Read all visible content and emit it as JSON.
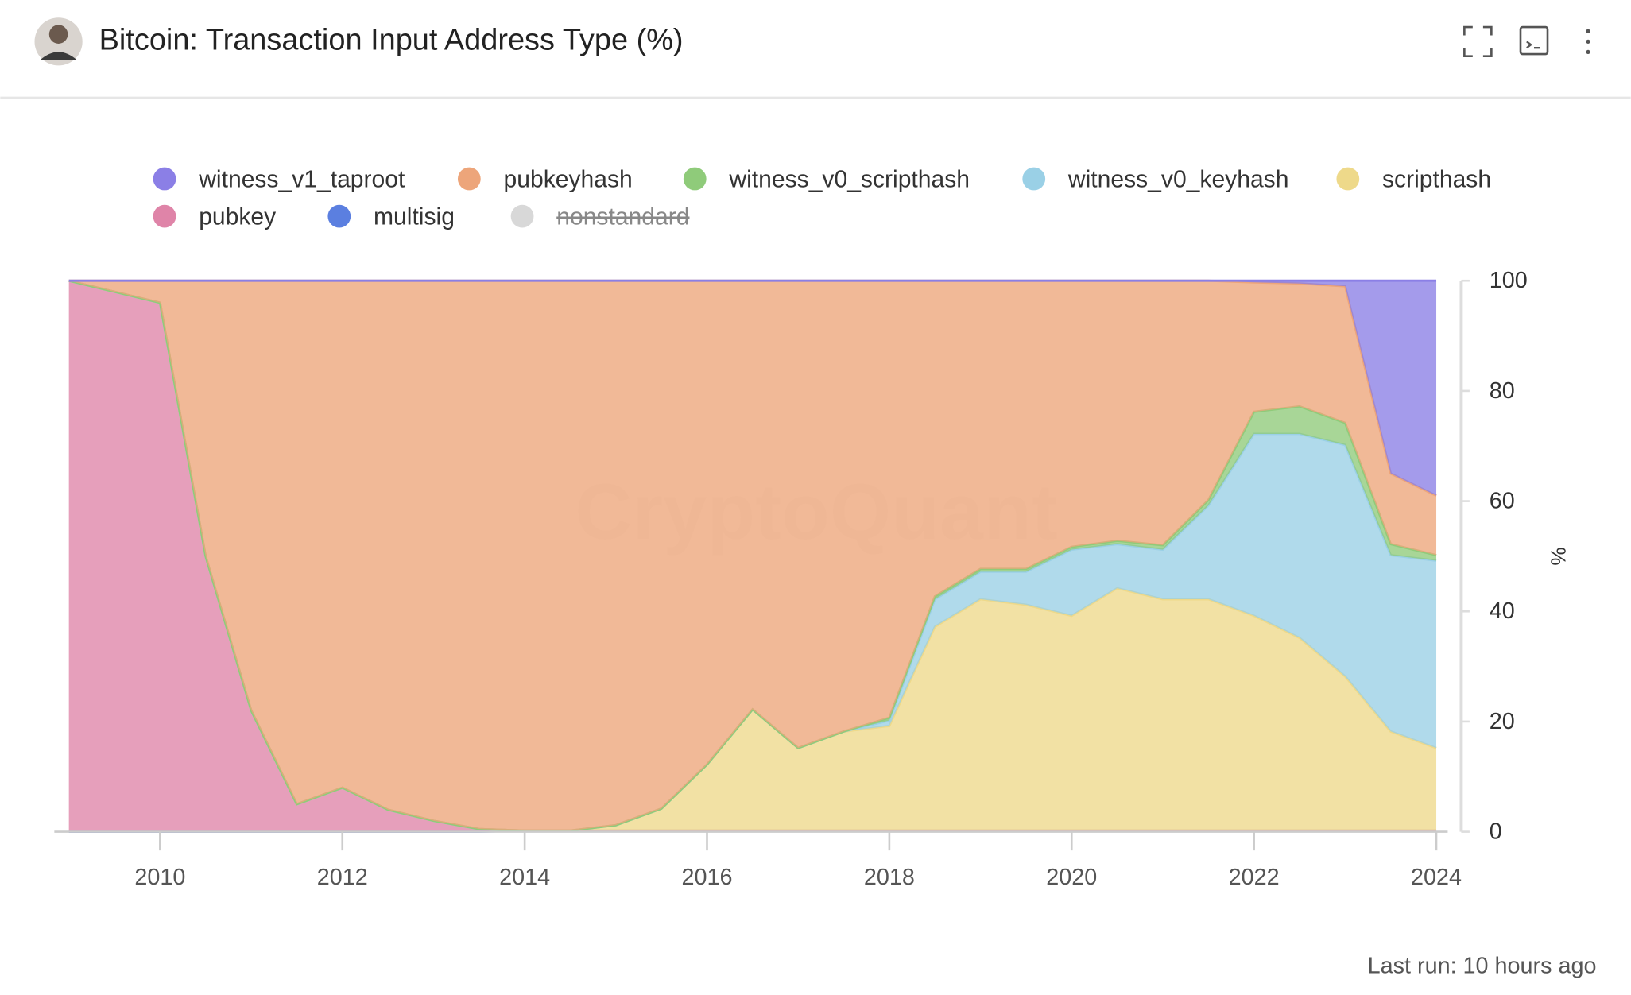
{
  "header": {
    "title": "Bitcoin: Transaction Input Address Type (%)"
  },
  "footer": {
    "text": "Last run: 10 hours ago"
  },
  "chart_data": {
    "type": "area",
    "stacked": true,
    "watermark": "CryptoQuant",
    "y_label": "%",
    "xlim": [
      2009,
      2024
    ],
    "xticks": [
      2010,
      2012,
      2014,
      2016,
      2018,
      2020,
      2022,
      2024
    ],
    "ylim": [
      0,
      100
    ],
    "yticks": [
      0,
      20,
      40,
      60,
      80,
      100
    ],
    "x": [
      2009,
      2009.5,
      2010,
      2010.5,
      2011,
      2011.5,
      2012,
      2012.5,
      2013,
      2013.5,
      2014,
      2014.5,
      2015,
      2015.5,
      2016,
      2016.5,
      2017,
      2017.5,
      2018,
      2018.5,
      2019,
      2019.5,
      2020,
      2020.5,
      2021,
      2021.5,
      2022,
      2022.5,
      2023,
      2023.5,
      2024
    ],
    "series": [
      {
        "name": "witness_v1_taproot",
        "color": "#8b7fe6",
        "values": [
          0,
          0,
          0,
          0,
          0,
          0,
          0,
          0,
          0,
          0,
          0,
          0,
          0,
          0,
          0,
          0,
          0,
          0,
          0,
          0,
          0,
          0,
          0,
          0,
          0,
          0,
          0.3,
          0.5,
          1,
          35,
          39
        ]
      },
      {
        "name": "pubkeyhash",
        "color": "#eda57a",
        "values": [
          0,
          2,
          4,
          50,
          78,
          95,
          92,
          96,
          98,
          99.5,
          99.8,
          99.8,
          98.8,
          95.8,
          87.8,
          77.8,
          84.8,
          81.8,
          79.3,
          57.3,
          52.3,
          52.3,
          48.3,
          47.2,
          48,
          39.8,
          23.5,
          22.3,
          24.8,
          12.8,
          10.8
        ]
      },
      {
        "name": "witness_v0_scripthash",
        "color": "#8fcb7a",
        "values": [
          0,
          0,
          0,
          0,
          0,
          0,
          0,
          0,
          0,
          0,
          0,
          0,
          0,
          0,
          0,
          0,
          0,
          0,
          0.5,
          0.5,
          0.5,
          0.5,
          0.5,
          0.6,
          0.8,
          1,
          4,
          5,
          4,
          2,
          1
        ]
      },
      {
        "name": "witness_v0_keyhash",
        "color": "#9ad0e6",
        "values": [
          0,
          0,
          0,
          0,
          0,
          0,
          0,
          0,
          0,
          0,
          0,
          0,
          0,
          0,
          0,
          0,
          0,
          0,
          1,
          5,
          5,
          6,
          12,
          8,
          9,
          17,
          33,
          37,
          42,
          32,
          34
        ]
      },
      {
        "name": "scripthash",
        "color": "#eed98a",
        "values": [
          0,
          0,
          0,
          0,
          0,
          0,
          0,
          0,
          0,
          0,
          0,
          0,
          1,
          4,
          12,
          22,
          15,
          18,
          19,
          37,
          42,
          41,
          39,
          44,
          42,
          42,
          39,
          35,
          28,
          18,
          15
        ]
      },
      {
        "name": "pubkey",
        "color": "#df84a8",
        "values": [
          100,
          98,
          96,
          50,
          22,
          5,
          8,
          4,
          2,
          0.5,
          0,
          0,
          0,
          0,
          0,
          0,
          0,
          0,
          0,
          0,
          0,
          0,
          0,
          0,
          0,
          0,
          0,
          0,
          0,
          0,
          0
        ]
      },
      {
        "name": "multisig",
        "color": "#5b7fe0",
        "values": [
          0,
          0,
          0,
          0,
          0,
          0,
          0,
          0,
          0,
          0,
          0.2,
          0.2,
          0.2,
          0.2,
          0.2,
          0.2,
          0.2,
          0.2,
          0.2,
          0.2,
          0.2,
          0.2,
          0.2,
          0.2,
          0.2,
          0.2,
          0.2,
          0.2,
          0.2,
          0.2,
          0.2
        ]
      },
      {
        "name": "nonstandard",
        "color": "#d8d8d8",
        "hidden": true
      }
    ]
  }
}
